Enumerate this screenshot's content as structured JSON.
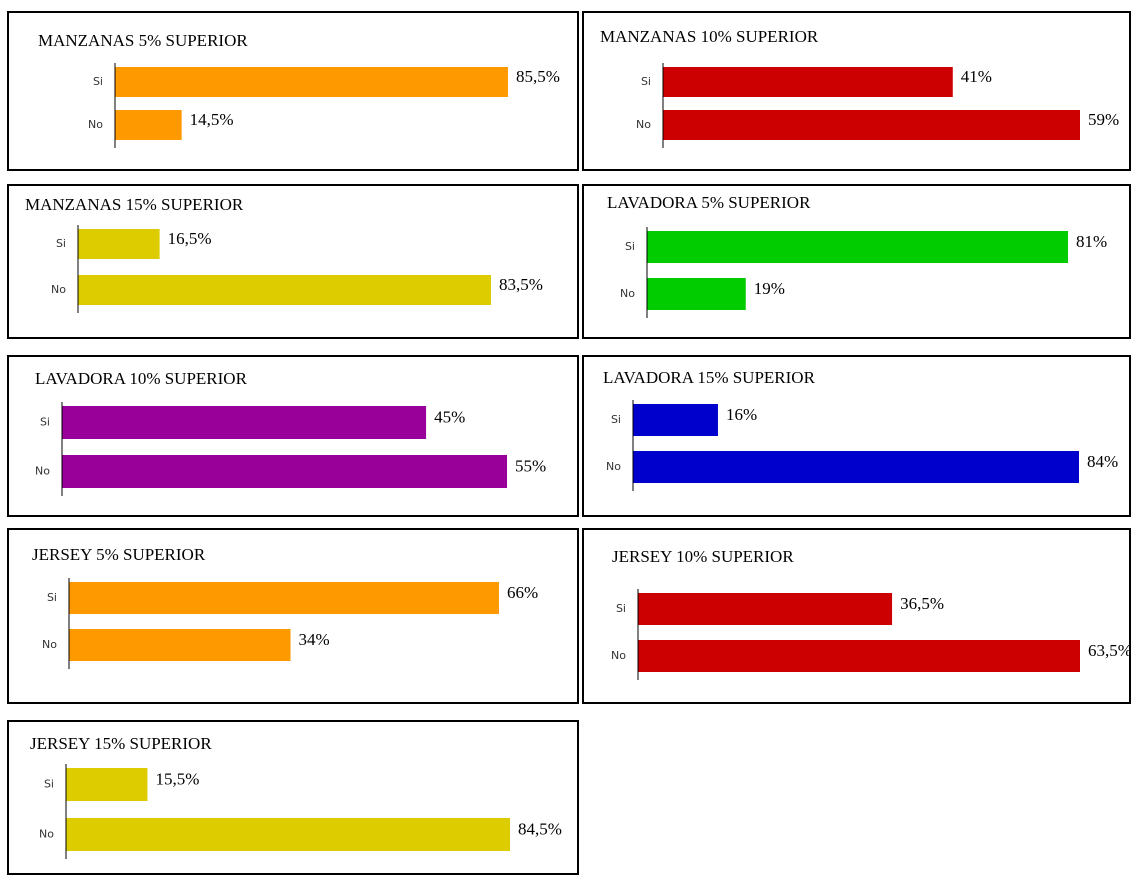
{
  "chart_data": [
    {
      "type": "bar",
      "orientation": "horizontal",
      "title": "MANZANAS 5% SUPERIOR",
      "categories": [
        "Si",
        "No"
      ],
      "values": [
        85.5,
        14.5
      ],
      "value_labels": [
        "85,5%",
        "14,5%"
      ],
      "color": "#ff9900"
    },
    {
      "type": "bar",
      "orientation": "horizontal",
      "title": "MANZANAS 10% SUPERIOR",
      "categories": [
        "Si",
        "No"
      ],
      "values": [
        41,
        59
      ],
      "value_labels": [
        "41%",
        "59%"
      ],
      "color": "#cc0000"
    },
    {
      "type": "bar",
      "orientation": "horizontal",
      "title": "MANZANAS 15% SUPERIOR",
      "categories": [
        "Si",
        "No"
      ],
      "values": [
        16.5,
        83.5
      ],
      "value_labels": [
        "16,5%",
        "83,5%"
      ],
      "color": "#ddcc00"
    },
    {
      "type": "bar",
      "orientation": "horizontal",
      "title": "LAVADORA 5% SUPERIOR",
      "categories": [
        "Si",
        "No"
      ],
      "values": [
        81,
        19
      ],
      "value_labels": [
        "81%",
        "19%"
      ],
      "color": "#00cc00"
    },
    {
      "type": "bar",
      "orientation": "horizontal",
      "title": "LAVADORA 10% SUPERIOR",
      "categories": [
        "Si",
        "No"
      ],
      "values": [
        45,
        55
      ],
      "value_labels": [
        "45%",
        "55%"
      ],
      "color": "#990099"
    },
    {
      "type": "bar",
      "orientation": "horizontal",
      "title": "LAVADORA 15% SUPERIOR",
      "categories": [
        "Si",
        "No"
      ],
      "values": [
        16,
        84
      ],
      "value_labels": [
        "16%",
        "84%"
      ],
      "color": "#0000cc"
    },
    {
      "type": "bar",
      "orientation": "horizontal",
      "title": "JERSEY 5% SUPERIOR",
      "categories": [
        "Si",
        "No"
      ],
      "values": [
        66,
        34
      ],
      "value_labels": [
        "66%",
        "34%"
      ],
      "color": "#ff9900"
    },
    {
      "type": "bar",
      "orientation": "horizontal",
      "title": "JERSEY 10% SUPERIOR",
      "categories": [
        "Si",
        "No"
      ],
      "values": [
        36.5,
        63.5
      ],
      "value_labels": [
        "36,5%",
        "63,5%"
      ],
      "color": "#cc0000"
    },
    {
      "type": "bar",
      "orientation": "horizontal",
      "title": "JERSEY 15% SUPERIOR",
      "categories": [
        "Si",
        "No"
      ],
      "values": [
        15.5,
        84.5
      ],
      "value_labels": [
        "15,5%",
        "84,5%"
      ],
      "color": "#ddcc00"
    }
  ]
}
